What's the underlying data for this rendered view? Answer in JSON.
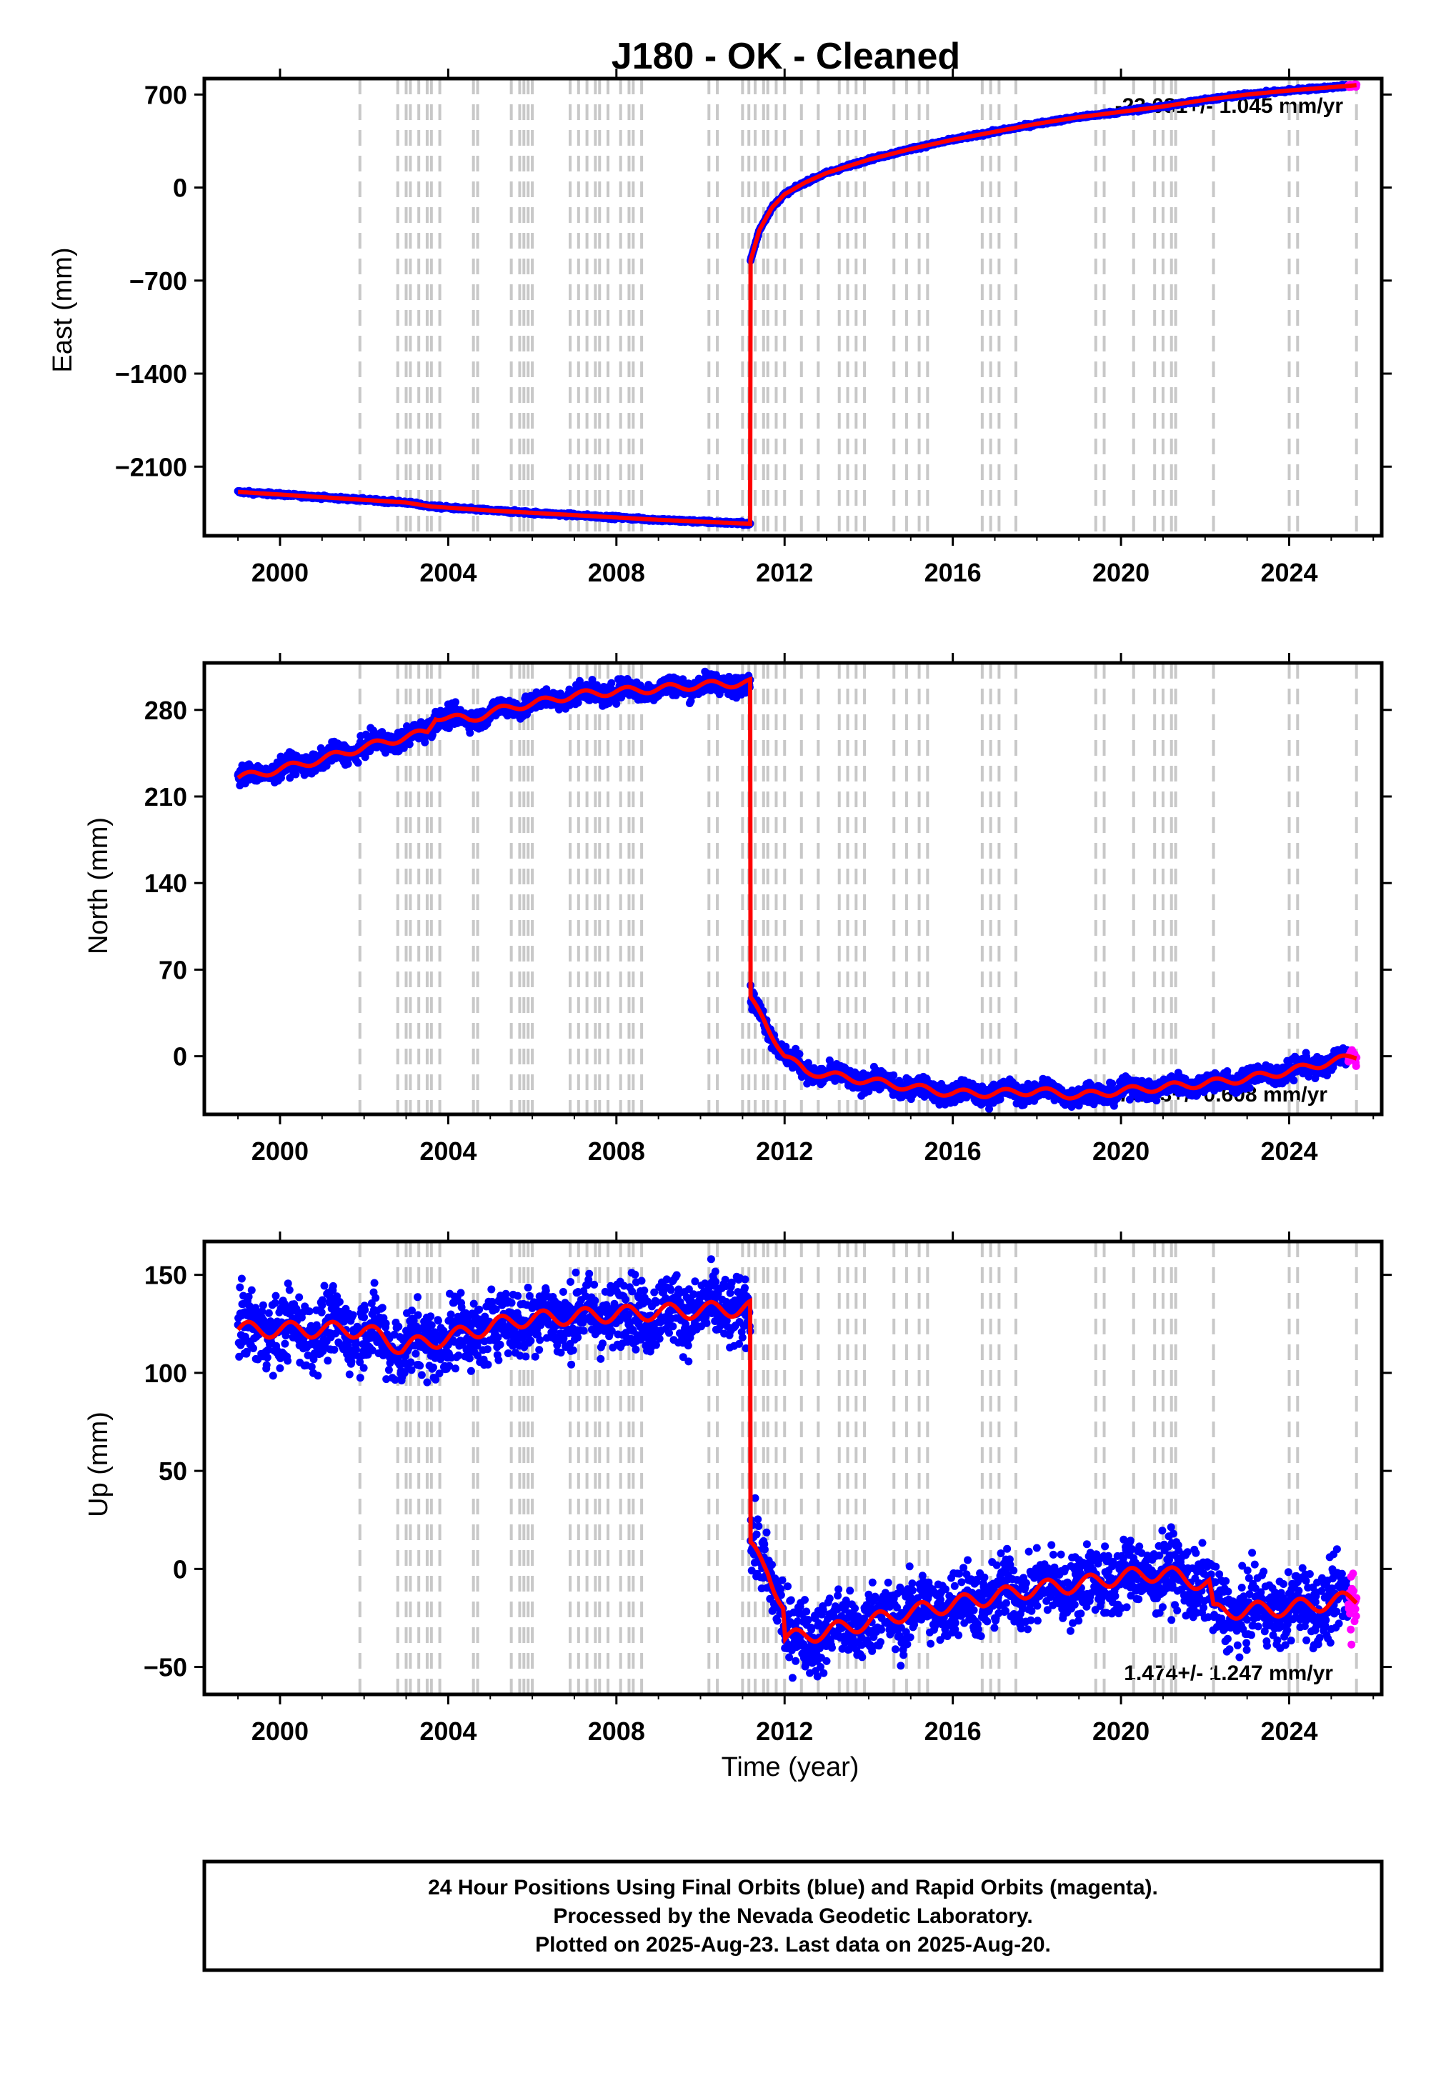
{
  "title": "J180  - OK - Cleaned",
  "colors": {
    "final": "#0000ff",
    "rapid": "#ff00ff",
    "model": "#ff0000",
    "steps": "#c8c8c8"
  },
  "chart_data": [
    {
      "type": "scatter",
      "panel": "east",
      "ylabel": "East (mm)",
      "xlabel": "",
      "xlim": [
        1998.2,
        2026.2
      ],
      "ylim": [
        -2620,
        820
      ],
      "xticks": [
        "2000",
        "2004",
        "2008",
        "2012",
        "2016",
        "2020",
        "2024"
      ],
      "yticks": [
        "700",
        "0",
        "−700",
        "−1400",
        "−2100"
      ],
      "rate": "-23.081+/- 1.045 mm/yr",
      "series": [
        {
          "x": [
            1999.0,
            2001.0,
            2003.0,
            2003.6,
            2005.0,
            2007.0,
            2009.0,
            2011.18
          ],
          "values": [
            -2290,
            -2330,
            -2370,
            -2400,
            -2430,
            -2465,
            -2500,
            -2530
          ]
        },
        {
          "x": [
            2011.19,
            2011.4,
            2011.7,
            2012.0,
            2012.5,
            2013.0,
            2014.0,
            2015.0,
            2016.0,
            2017.0,
            2018.0,
            2019.0,
            2020.0,
            2021.0,
            2022.0,
            2023.0,
            2024.0,
            2025.6
          ],
          "values": [
            -550,
            -320,
            -150,
            -50,
            40,
            110,
            210,
            290,
            360,
            420,
            480,
            530,
            570,
            610,
            660,
            700,
            730,
            770
          ]
        }
      ]
    },
    {
      "type": "scatter",
      "panel": "north",
      "ylabel": "North (mm)",
      "xlabel": "",
      "xlim": [
        1998.2,
        2026.2
      ],
      "ylim": [
        -47,
        318
      ],
      "xticks": [
        "2000",
        "2004",
        "2008",
        "2012",
        "2016",
        "2020",
        "2024"
      ],
      "yticks": [
        "280",
        "210",
        "140",
        "70",
        "0"
      ],
      "rate": "7.633+/- 0.608 mm/yr",
      "series": [
        {
          "x": [
            1999.0,
            2000.0,
            2001.0,
            2002.0,
            2003.0,
            2003.5,
            2003.7,
            2004.5,
            2005.0,
            2005.6,
            2006.0,
            2007.0,
            2008.0,
            2009.0,
            2010.0,
            2011.18
          ],
          "values": [
            225,
            232,
            240,
            250,
            258,
            262,
            275,
            272,
            278,
            283,
            285,
            292,
            295,
            297,
            300,
            302
          ]
        },
        {
          "x": [
            2011.19,
            2011.5,
            2012.0,
            2012.5,
            2013.0,
            2014.0,
            2015.0,
            2016.0,
            2017.0,
            2018.0,
            2019.0,
            2020.0,
            2021.0,
            2022.0,
            2023.0,
            2024.0,
            2025.6
          ],
          "values": [
            45,
            30,
            0,
            -12,
            -15,
            -20,
            -25,
            -30,
            -30,
            -28,
            -32,
            -28,
            -25,
            -22,
            -18,
            -12,
            0
          ]
        }
      ]
    },
    {
      "type": "scatter",
      "panel": "up",
      "ylabel": "Up (mm)",
      "xlabel": "Time (year)",
      "xlim": [
        1998.2,
        2026.2
      ],
      "ylim": [
        -64,
        167
      ],
      "xticks": [
        "2000",
        "2004",
        "2008",
        "2012",
        "2016",
        "2020",
        "2024"
      ],
      "yticks": [
        "150",
        "100",
        "50",
        "0",
        "−50"
      ],
      "rate": "1.474+/- 1.247 mm/yr",
      "series": [
        {
          "x": [
            1999.0,
            2002.0,
            2002.9,
            2004.0,
            2005.6,
            2008.0,
            2011.18
          ],
          "values": [
            122,
            122,
            113,
            118,
            127,
            130,
            133
          ]
        },
        {
          "x": [
            2011.19,
            2011.6,
            2011.98,
            2012.0,
            2013.0,
            2014.0,
            2015.0,
            2016.0,
            2017.0,
            2018.0,
            2019.0,
            2020.0,
            2021.0,
            2022.1,
            2022.2,
            2023.0,
            2024.0,
            2025.6
          ],
          "values": [
            10,
            0,
            -20,
            -36,
            -32,
            -27,
            -22,
            -18,
            -14,
            -10,
            -8,
            -4,
            -2,
            -8,
            -22,
            -21,
            -20,
            -15
          ]
        }
      ]
    }
  ],
  "step_years": [
    2001.9,
    2002.8,
    2003.0,
    2003.1,
    2003.3,
    2003.5,
    2003.6,
    2003.8,
    2004.6,
    2004.7,
    2005.5,
    2005.7,
    2005.8,
    2005.9,
    2006.0,
    2006.9,
    2007.1,
    2007.3,
    2007.5,
    2007.6,
    2007.8,
    2008.1,
    2008.3,
    2008.4,
    2008.6,
    2010.2,
    2010.4,
    2011.0,
    2011.15,
    2011.3,
    2011.5,
    2011.6,
    2011.8,
    2012.0,
    2012.4,
    2012.8,
    2013.3,
    2013.5,
    2013.7,
    2013.9,
    2014.6,
    2014.9,
    2015.2,
    2015.4,
    2016.7,
    2016.9,
    2017.1,
    2017.5,
    2019.4,
    2019.6,
    2020.3,
    2020.8,
    2021.0,
    2021.2,
    2021.3,
    2022.2,
    2024.0,
    2024.2,
    2025.6
  ],
  "footer": {
    "line1": "24 Hour Positions Using Final Orbits (blue) and Rapid Orbits (magenta).",
    "line2": "Processed by the Nevada Geodetic Laboratory.",
    "line3": "Plotted on 2025-Aug-23. Last data on 2025-Aug-20."
  }
}
